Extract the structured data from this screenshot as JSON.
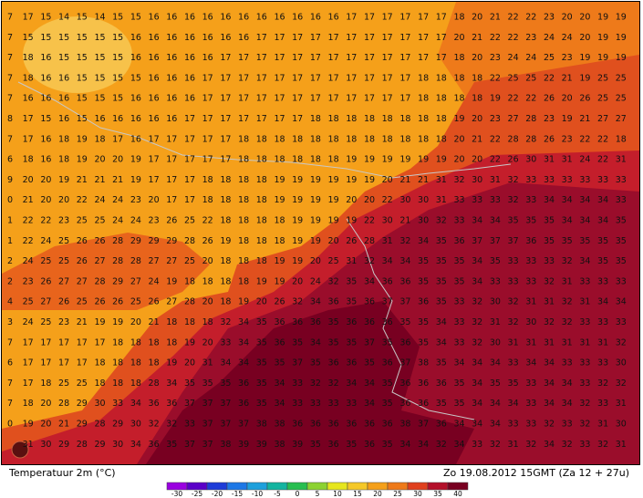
{
  "title": "Temperatuur 2m (°C)",
  "valid_time": "Zo 19.08.2012 15GMT (Za 12 + 27u)",
  "colorbar": {
    "labels": [
      -30,
      -25,
      -20,
      -15,
      -10,
      -5,
      0,
      5,
      10,
      15,
      20,
      25,
      30,
      35,
      40
    ],
    "colors": [
      "#9a00e0",
      "#5a00c8",
      "#1e3cd8",
      "#1e78e6",
      "#1ea0dc",
      "#14b4a0",
      "#28be50",
      "#8cd232",
      "#e6e61e",
      "#f5c828",
      "#f5a01a",
      "#ee7a1a",
      "#e0401e",
      "#b4102a",
      "#780021"
    ]
  },
  "grid": [
    [
      7,
      17,
      15,
      14,
      15,
      14,
      15,
      15,
      16,
      16,
      16,
      16,
      16,
      16,
      16,
      16,
      16,
      16,
      16,
      17,
      17,
      17,
      17,
      17,
      17,
      18,
      20,
      21,
      22,
      22,
      23,
      20,
      20,
      19,
      19
    ],
    [
      7,
      15,
      15,
      15,
      15,
      15,
      15,
      16,
      16,
      16,
      16,
      16,
      16,
      16,
      17,
      17,
      17,
      17,
      17,
      17,
      17,
      17,
      17,
      17,
      17,
      20,
      21,
      22,
      22,
      23,
      24,
      24,
      20,
      19,
      19
    ],
    [
      7,
      18,
      16,
      15,
      15,
      15,
      15,
      16,
      16,
      16,
      16,
      16,
      17,
      17,
      17,
      17,
      17,
      17,
      17,
      17,
      17,
      17,
      17,
      17,
      17,
      18,
      20,
      23,
      24,
      24,
      25,
      23,
      19,
      19,
      19
    ],
    [
      7,
      18,
      16,
      16,
      15,
      15,
      15,
      15,
      16,
      16,
      16,
      17,
      17,
      17,
      17,
      17,
      17,
      17,
      17,
      17,
      17,
      17,
      17,
      18,
      18,
      18,
      18,
      22,
      25,
      25,
      22,
      21,
      19,
      25,
      25
    ],
    [
      7,
      16,
      16,
      16,
      15,
      15,
      15,
      16,
      16,
      16,
      16,
      17,
      17,
      17,
      17,
      17,
      17,
      17,
      17,
      17,
      17,
      17,
      17,
      18,
      18,
      18,
      18,
      19,
      22,
      22,
      26,
      20,
      26,
      25,
      25
    ],
    [
      8,
      17,
      15,
      16,
      15,
      16,
      16,
      16,
      16,
      16,
      17,
      17,
      17,
      17,
      17,
      17,
      17,
      18,
      18,
      18,
      18,
      18,
      18,
      18,
      18,
      19,
      20,
      23,
      27,
      28,
      23,
      19,
      21,
      27,
      27
    ],
    [
      7,
      17,
      16,
      18,
      19,
      18,
      17,
      16,
      17,
      17,
      17,
      17,
      17,
      18,
      18,
      18,
      18,
      18,
      18,
      18,
      18,
      18,
      18,
      18,
      18,
      20,
      21,
      22,
      28,
      28,
      26,
      23,
      22,
      22,
      18
    ],
    [
      6,
      18,
      16,
      18,
      19,
      20,
      20,
      19,
      17,
      17,
      17,
      17,
      17,
      18,
      18,
      18,
      18,
      18,
      18,
      19,
      19,
      19,
      19,
      19,
      19,
      20,
      20,
      22,
      26,
      30,
      31,
      31,
      24,
      22,
      31
    ],
    [
      9,
      20,
      20,
      19,
      21,
      21,
      21,
      19,
      17,
      17,
      17,
      18,
      18,
      18,
      18,
      19,
      19,
      19,
      19,
      19,
      19,
      20,
      21,
      21,
      31,
      32,
      30,
      31,
      32,
      33,
      33,
      33,
      33,
      33,
      33
    ],
    [
      0,
      21,
      20,
      20,
      22,
      24,
      24,
      23,
      20,
      17,
      17,
      18,
      18,
      18,
      18,
      19,
      19,
      19,
      19,
      20,
      20,
      22,
      30,
      30,
      31,
      33,
      33,
      33,
      32,
      33,
      34,
      34,
      34,
      34,
      33
    ],
    [
      1,
      22,
      22,
      23,
      25,
      25,
      24,
      24,
      23,
      26,
      25,
      22,
      18,
      18,
      18,
      18,
      19,
      19,
      19,
      19,
      22,
      30,
      21,
      30,
      32,
      33,
      34,
      34,
      35,
      35,
      35,
      34,
      34,
      34,
      35
    ],
    [
      1,
      22,
      24,
      25,
      26,
      26,
      28,
      29,
      29,
      29,
      28,
      26,
      19,
      18,
      18,
      18,
      19,
      19,
      20,
      26,
      28,
      31,
      32,
      34,
      35,
      36,
      37,
      37,
      37,
      36,
      35,
      35,
      35,
      35,
      35
    ],
    [
      2,
      24,
      25,
      25,
      26,
      27,
      28,
      28,
      27,
      27,
      25,
      20,
      18,
      18,
      18,
      19,
      19,
      20,
      25,
      31,
      32,
      34,
      34,
      35,
      35,
      35,
      34,
      35,
      33,
      33,
      33,
      32,
      34,
      35,
      35
    ],
    [
      2,
      23,
      26,
      27,
      27,
      28,
      29,
      27,
      24,
      19,
      18,
      18,
      18,
      18,
      19,
      19,
      20,
      24,
      32,
      35,
      34,
      36,
      36,
      35,
      35,
      35,
      34,
      33,
      33,
      33,
      32,
      31,
      33,
      33,
      33
    ],
    [
      4,
      25,
      27,
      26,
      25,
      26,
      26,
      25,
      26,
      27,
      28,
      20,
      18,
      19,
      20,
      26,
      32,
      34,
      36,
      35,
      36,
      37,
      37,
      36,
      35,
      33,
      32,
      30,
      32,
      31,
      31,
      32,
      31,
      34,
      34
    ],
    [
      3,
      24,
      25,
      23,
      21,
      19,
      19,
      20,
      21,
      18,
      18,
      18,
      32,
      34,
      35,
      36,
      36,
      36,
      35,
      36,
      36,
      36,
      35,
      35,
      34,
      33,
      32,
      31,
      32,
      30,
      32,
      32,
      33,
      33,
      33
    ],
    [
      7,
      17,
      17,
      17,
      17,
      17,
      18,
      18,
      18,
      18,
      19,
      20,
      33,
      34,
      35,
      36,
      35,
      34,
      35,
      35,
      37,
      35,
      36,
      35,
      34,
      33,
      32,
      30,
      31,
      31,
      31,
      31,
      31,
      31,
      32
    ],
    [
      6,
      17,
      17,
      17,
      17,
      18,
      18,
      18,
      18,
      19,
      20,
      31,
      34,
      34,
      35,
      35,
      37,
      35,
      36,
      36,
      35,
      36,
      37,
      38,
      35,
      34,
      34,
      34,
      33,
      34,
      34,
      33,
      33,
      33,
      30
    ],
    [
      7,
      17,
      18,
      25,
      25,
      18,
      18,
      18,
      28,
      34,
      35,
      35,
      35,
      36,
      35,
      34,
      33,
      32,
      32,
      34,
      34,
      35,
      36,
      36,
      36,
      35,
      34,
      35,
      35,
      33,
      34,
      34,
      33,
      32,
      32
    ],
    [
      7,
      18,
      20,
      28,
      29,
      30,
      33,
      34,
      36,
      36,
      37,
      37,
      37,
      36,
      35,
      34,
      33,
      33,
      33,
      33,
      34,
      35,
      36,
      36,
      35,
      35,
      34,
      34,
      34,
      33,
      34,
      34,
      32,
      33,
      31
    ],
    [
      0,
      19,
      20,
      21,
      29,
      28,
      29,
      30,
      32,
      32,
      33,
      37,
      37,
      37,
      38,
      38,
      36,
      36,
      36,
      36,
      36,
      36,
      38,
      37,
      36,
      34,
      34,
      34,
      33,
      33,
      32,
      33,
      32,
      31,
      30
    ],
    [
      null,
      31,
      30,
      29,
      28,
      29,
      30,
      34,
      36,
      35,
      37,
      37,
      38,
      39,
      39,
      38,
      39,
      35,
      36,
      35,
      36,
      35,
      34,
      34,
      32,
      34,
      33,
      32,
      31,
      32,
      34,
      32,
      33,
      32,
      31
    ]
  ]
}
